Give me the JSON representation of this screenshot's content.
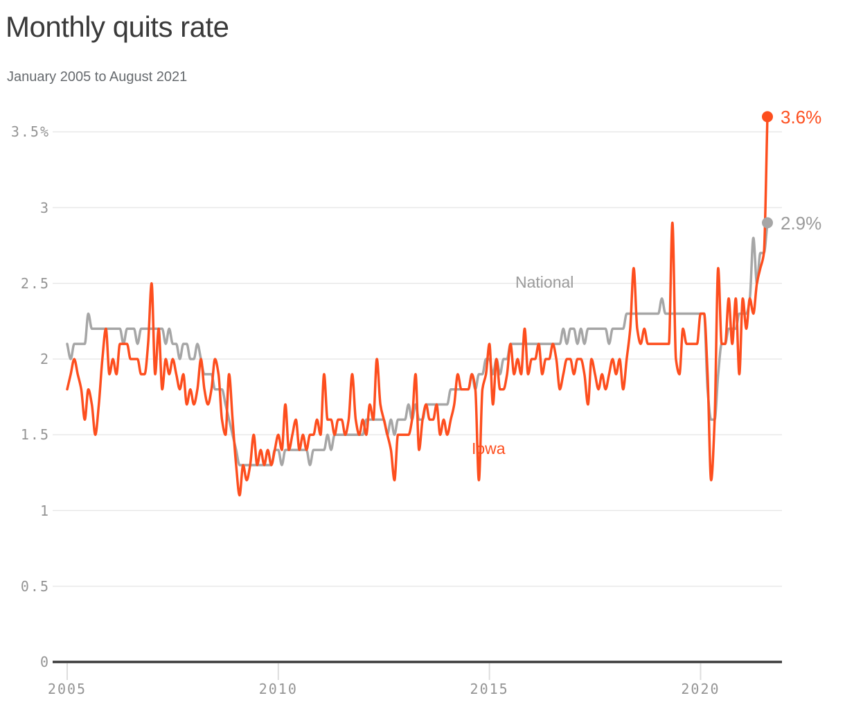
{
  "header": {
    "title": "Monthly quits rate",
    "subtitle": "January 2005 to August 2021"
  },
  "colors": {
    "iowa_line": "#FD4E1E",
    "national_line": "#A6A6A6",
    "national_label": "#9B9B9B",
    "national_end_label": "#9A9A9A",
    "title_text": "#3a3a3a",
    "subtitle_text": "#666a6e",
    "tick_text": "#949494",
    "gridline": "#E8E8E8",
    "axis_line": "#3B3B3B",
    "tick_stub": "#DDDDDD",
    "background": "#FFFFFF"
  },
  "chart_data": {
    "type": "line",
    "title": "Monthly quits rate",
    "subtitle": "January 2005 to August 2021",
    "x": {
      "start": "2005-01",
      "end": "2021-08",
      "interval": "monthly",
      "n_points": 200
    },
    "x_ticks": [
      2005,
      2010,
      2015,
      2020
    ],
    "y_ticks": [
      {
        "value": 3.5,
        "label": "3.5%"
      },
      {
        "value": 3,
        "label": "3"
      },
      {
        "value": 2.5,
        "label": "2.5"
      },
      {
        "value": 2,
        "label": "2"
      },
      {
        "value": 1.5,
        "label": "1.5"
      },
      {
        "value": 1,
        "label": "1"
      },
      {
        "value": 0.5,
        "label": "0.5"
      },
      {
        "value": 0,
        "label": "0"
      }
    ],
    "ylim": [
      0,
      3.6
    ],
    "grid": "horizontal",
    "legend_position": "inline-labels",
    "series": [
      {
        "name": "National",
        "color": "#A6A6A6",
        "end_label": "2.9%",
        "end_value": 2.9,
        "values": [
          2.1,
          2.0,
          2.1,
          2.1,
          2.1,
          2.1,
          2.3,
          2.2,
          2.2,
          2.2,
          2.2,
          2.2,
          2.2,
          2.2,
          2.2,
          2.2,
          2.1,
          2.2,
          2.2,
          2.2,
          2.1,
          2.2,
          2.2,
          2.2,
          2.2,
          2.2,
          2.2,
          2.2,
          2.1,
          2.2,
          2.1,
          2.1,
          2.0,
          2.1,
          2.1,
          2.0,
          2.0,
          2.1,
          2.0,
          1.9,
          1.9,
          1.9,
          1.8,
          1.8,
          1.8,
          1.7,
          1.6,
          1.5,
          1.4,
          1.3,
          1.3,
          1.3,
          1.3,
          1.3,
          1.3,
          1.3,
          1.3,
          1.3,
          1.3,
          1.4,
          1.4,
          1.3,
          1.4,
          1.4,
          1.4,
          1.4,
          1.4,
          1.4,
          1.4,
          1.3,
          1.4,
          1.4,
          1.4,
          1.4,
          1.5,
          1.4,
          1.5,
          1.5,
          1.5,
          1.5,
          1.5,
          1.5,
          1.5,
          1.5,
          1.5,
          1.6,
          1.6,
          1.6,
          1.6,
          1.6,
          1.6,
          1.5,
          1.6,
          1.5,
          1.6,
          1.6,
          1.6,
          1.7,
          1.6,
          1.7,
          1.6,
          1.6,
          1.7,
          1.7,
          1.7,
          1.7,
          1.7,
          1.7,
          1.7,
          1.8,
          1.8,
          1.8,
          1.8,
          1.8,
          1.8,
          1.9,
          1.8,
          1.9,
          1.9,
          2.0,
          2.0,
          1.9,
          2.0,
          1.9,
          2.0,
          2.0,
          2.1,
          2.1,
          2.1,
          2.1,
          2.1,
          2.1,
          2.1,
          2.1,
          2.1,
          2.1,
          2.1,
          2.1,
          2.1,
          2.1,
          2.1,
          2.2,
          2.1,
          2.2,
          2.2,
          2.1,
          2.2,
          2.1,
          2.2,
          2.2,
          2.2,
          2.2,
          2.2,
          2.2,
          2.1,
          2.2,
          2.2,
          2.2,
          2.2,
          2.3,
          2.3,
          2.3,
          2.3,
          2.3,
          2.3,
          2.3,
          2.3,
          2.3,
          2.3,
          2.4,
          2.3,
          2.3,
          2.3,
          2.3,
          2.3,
          2.3,
          2.3,
          2.3,
          2.3,
          2.3,
          2.3,
          2.3,
          1.8,
          1.6,
          1.6,
          1.9,
          2.1,
          2.1,
          2.2,
          2.2,
          2.2,
          2.3,
          2.3,
          2.3,
          2.4,
          2.8,
          2.5,
          2.7,
          2.7,
          2.9
        ]
      },
      {
        "name": "Iowa",
        "color": "#FD4E1E",
        "end_label": "3.6%",
        "end_value": 3.6,
        "values": [
          1.8,
          1.9,
          2.0,
          1.9,
          1.8,
          1.6,
          1.8,
          1.7,
          1.5,
          1.7,
          2.0,
          2.2,
          1.9,
          2.0,
          1.9,
          2.1,
          2.1,
          2.1,
          2.0,
          2.0,
          2.0,
          1.9,
          1.9,
          2.1,
          2.5,
          1.9,
          2.2,
          1.8,
          2.0,
          1.9,
          2.0,
          1.9,
          1.8,
          1.9,
          1.7,
          1.8,
          1.7,
          1.8,
          2.0,
          1.8,
          1.7,
          1.8,
          2.0,
          1.9,
          1.6,
          1.5,
          1.9,
          1.6,
          1.3,
          1.1,
          1.3,
          1.2,
          1.3,
          1.5,
          1.3,
          1.4,
          1.3,
          1.4,
          1.3,
          1.4,
          1.5,
          1.4,
          1.7,
          1.4,
          1.5,
          1.6,
          1.4,
          1.5,
          1.4,
          1.5,
          1.5,
          1.6,
          1.5,
          1.9,
          1.6,
          1.6,
          1.5,
          1.6,
          1.6,
          1.5,
          1.6,
          1.9,
          1.6,
          1.5,
          1.6,
          1.5,
          1.7,
          1.6,
          2.0,
          1.7,
          1.6,
          1.5,
          1.4,
          1.2,
          1.5,
          1.5,
          1.5,
          1.5,
          1.6,
          1.9,
          1.4,
          1.6,
          1.7,
          1.6,
          1.6,
          1.7,
          1.5,
          1.6,
          1.5,
          1.6,
          1.7,
          1.9,
          1.8,
          1.8,
          1.8,
          1.9,
          1.8,
          1.2,
          1.8,
          1.9,
          2.1,
          1.7,
          2.0,
          1.8,
          1.8,
          1.9,
          2.1,
          1.9,
          2.0,
          1.9,
          2.2,
          1.9,
          2.0,
          2.0,
          2.1,
          1.9,
          2.0,
          2.0,
          2.1,
          2.0,
          1.8,
          1.9,
          2.0,
          2.0,
          1.9,
          2.0,
          2.0,
          1.9,
          1.7,
          2.0,
          1.9,
          1.8,
          1.9,
          1.8,
          1.9,
          2.0,
          1.9,
          2.0,
          1.8,
          2.0,
          2.2,
          2.6,
          2.2,
          2.1,
          2.2,
          2.1,
          2.1,
          2.1,
          2.1,
          2.1,
          2.1,
          2.1,
          2.9,
          2.0,
          1.9,
          2.2,
          2.1,
          2.1,
          2.1,
          2.1,
          2.3,
          2.3,
          1.9,
          1.2,
          1.6,
          2.6,
          2.1,
          2.1,
          2.4,
          2.1,
          2.4,
          1.9,
          2.4,
          2.2,
          2.4,
          2.3,
          2.5,
          2.6,
          2.7,
          3.6
        ]
      }
    ]
  }
}
